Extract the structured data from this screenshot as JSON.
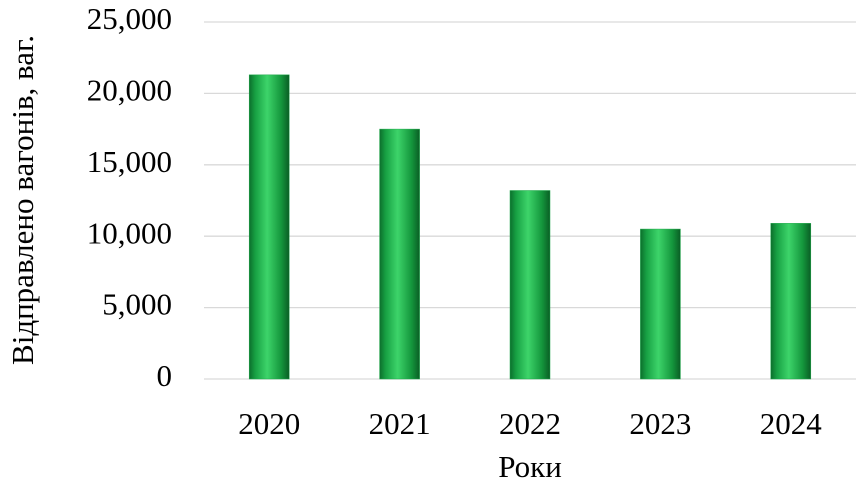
{
  "chart_data": {
    "type": "bar",
    "categories": [
      "2020",
      "2021",
      "2022",
      "2023",
      "2024"
    ],
    "values": [
      21300,
      17500,
      13200,
      10500,
      10900
    ],
    "color": "#1fa84a",
    "xlabel": "Роки",
    "ylabel": "Відправлено вагонів, ваг.",
    "ylim": [
      0,
      25000
    ],
    "yticks": [
      0,
      {
        "value": 5000,
        "label": "5,000"
      },
      {
        "value": 10000,
        "label": "10,000"
      },
      {
        "value": 15000,
        "label": "15,000"
      },
      {
        "value": 20000,
        "label": "20,000"
      },
      {
        "value": 25000,
        "label": "25,000"
      }
    ],
    "grid": true
  }
}
